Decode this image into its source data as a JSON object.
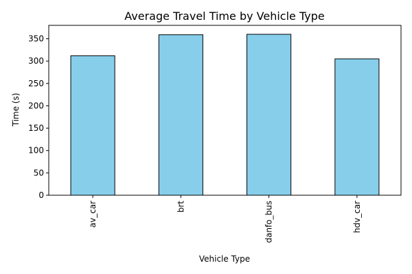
{
  "chart_data": {
    "type": "bar",
    "title": "Average Travel Time by Vehicle Type",
    "xlabel": "Vehicle Type",
    "ylabel": "Time (s)",
    "categories": [
      "av_car",
      "brt",
      "danfo_bus",
      "hdv_car"
    ],
    "values": [
      312,
      359,
      360,
      305
    ],
    "ylim": [
      0,
      380
    ],
    "yticks": [
      0,
      50,
      100,
      150,
      200,
      250,
      300,
      350
    ],
    "grid": false,
    "legend": "none",
    "colors": {
      "bar_fill": "#87CEEB",
      "bar_edge": "#000000",
      "axis": "#000000"
    }
  }
}
